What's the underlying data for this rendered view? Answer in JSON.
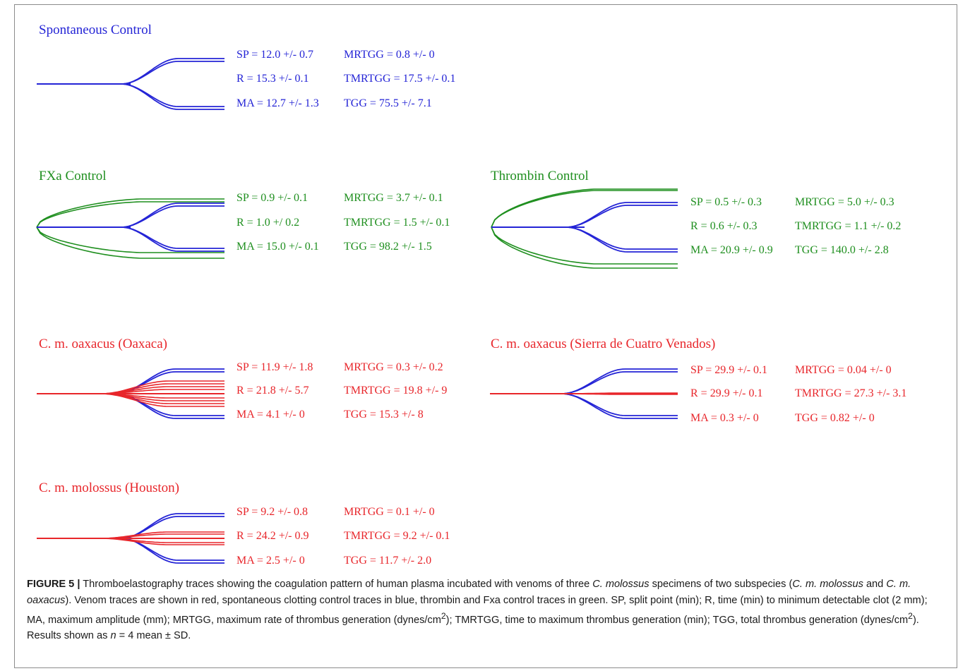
{
  "colors": {
    "spontaneous": "#2424d6",
    "control": "#1f8f1f",
    "venom": "#e8262b"
  },
  "panels": [
    {
      "id": "spontaneous",
      "title": "Spontaneous Control",
      "title_color": "blue",
      "stats": [
        [
          "SP = 12.0 +/- 0.7",
          "MRTGG = 0.8 +/- 0"
        ],
        [
          "R = 15.3 +/- 0.1",
          "TMRTGG = 17.5 +/- 0.1"
        ],
        [
          "MA = 12.7 +/- 1.3",
          "TGG = 75.5 +/- 7.1"
        ]
      ]
    },
    {
      "id": "fxa",
      "title": "FXa Control",
      "title_color": "green",
      "stats": [
        [
          "SP = 0.9 +/- 0.1",
          "MRTGG = 3.7 +/- 0.1"
        ],
        [
          "R = 1.0 +/ 0.2",
          "TMRTGG = 1.5 +/- 0.1"
        ],
        [
          "MA = 15.0 +/- 0.1",
          "TGG = 98.2 +/- 1.5"
        ]
      ]
    },
    {
      "id": "thrombin",
      "title": "Thrombin Control",
      "title_color": "green",
      "stats": [
        [
          "SP = 0.5 +/- 0.3",
          "MRTGG = 5.0 +/- 0.3"
        ],
        [
          "R = 0.6 +/- 0.3",
          "TMRTGG = 1.1 +/- 0.2"
        ],
        [
          "MA = 20.9 +/- 0.9",
          "TGG = 140.0 +/- 2.8"
        ]
      ]
    },
    {
      "id": "oaxaca",
      "title": "C. m. oaxacus (Oaxaca)",
      "title_color": "red",
      "stats": [
        [
          "SP = 11.9 +/- 1.8",
          "MRTGG = 0.3 +/- 0.2"
        ],
        [
          "R = 21.8 +/- 5.7",
          "TMRTGG = 19.8 +/- 9"
        ],
        [
          "MA = 4.1 +/- 0",
          "TGG = 15.3 +/- 8"
        ]
      ]
    },
    {
      "id": "sierra",
      "title": "C. m. oaxacus (Sierra de Cuatro Venados)",
      "title_color": "red",
      "stats": [
        [
          "SP = 29.9 +/- 0.1",
          "MRTGG = 0.04 +/- 0"
        ],
        [
          "R = 29.9 +/- 0.1",
          "TMRTGG = 27.3 +/- 3.1"
        ],
        [
          "MA = 0.3 +/- 0",
          "TGG = 0.82 +/- 0"
        ]
      ]
    },
    {
      "id": "houston",
      "title": "C. m. molossus (Houston)",
      "title_color": "red",
      "stats": [
        [
          "SP = 9.2 +/- 0.8",
          "MRTGG = 0.1 +/- 0"
        ],
        [
          "R = 24.2 +/- 0.9",
          "TMRTGG = 9.2 +/- 0.1"
        ],
        [
          "MA = 2.5 +/- 0",
          "TGG = 11.7 +/- 2.0"
        ]
      ]
    }
  ],
  "caption": {
    "label": "FIGURE 5 |",
    "part1": " Thromboelastography traces showing the coagulation pattern of human plasma incubated with venoms of three ",
    "italic1": "C. molossus",
    "part2": " specimens of two subspecies (",
    "italic2": "C. m. molossus",
    "part3": " and ",
    "italic3": "C. m. oaxacus",
    "part4": "). Venom traces are shown in red, spontaneous clotting control traces in blue, thrombin and Fxa control traces in green. SP, split point (min); R, time (min) to minimum detectable clot (2 mm); MA, maximum amplitude (mm); MRTGG, maximum rate of thrombus generation (dynes/cm",
    "sup": "2",
    "part5": "); TMRTGG, time to maximum thrombus generation (min); TGG, total thrombus generation (dynes/cm",
    "part6": "). Results shown as ",
    "italic_n": "n",
    "part7": " = 4 mean ± SD."
  }
}
